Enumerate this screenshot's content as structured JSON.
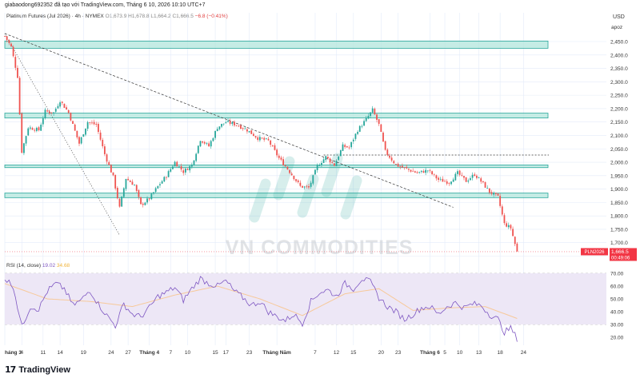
{
  "header": {
    "caption": "giabaodong692352 đã tạo với TradingView.com, Tháng 6 10, 2026 10:10 UTC+7"
  },
  "legend": {
    "symbol": "Platinum Futures (Jul 2026) · 4h · NYMEX",
    "open": "O1,673.9",
    "high": "H1,678.8",
    "low": "L1,664.2",
    "close": "C1,666.5",
    "change": "−6.8 (−0.41%)"
  },
  "rsi_legend": {
    "label": "RSI (14, close)",
    "rsi_value": "19.02",
    "ma_value": "34.68"
  },
  "currency": "USD",
  "scale_mode": "apoz",
  "price_tag": {
    "ticker": "PLN2026",
    "price": "1,666.5",
    "countdown": "00:49:06"
  },
  "watermark": "VN COMMODITIES",
  "brand": {
    "logo": "17",
    "name": "TradingView"
  },
  "colors": {
    "up": "#26a69a",
    "down": "#ef5350",
    "zone_fill": "#b2e5dc",
    "zone_stroke": "#26a69a",
    "rsi_line": "#7e57c2",
    "rsi_ma": "#f7c99a",
    "rsi_band": "#ede7f6",
    "grid": "#e3ebf9",
    "price_tag": "#f23645"
  },
  "chart_data": {
    "type": "candlestick",
    "price_axis": {
      "range": [
        1633,
        2510
      ],
      "ticks": [
        "2,450.0",
        "2,400.0",
        "2,350.0",
        "2,300.0",
        "2,250.0",
        "2,200.0",
        "2,150.0",
        "2,100.0",
        "2,050.0",
        "2,000.0",
        "1,950.0",
        "1,900.0",
        "1,850.0",
        "1,800.0",
        "1,750.0",
        "1,700.0",
        "1,650.0"
      ]
    },
    "rsi_axis": {
      "range": [
        12,
        76
      ],
      "ticks": [
        "70.00",
        "60.00",
        "50.00",
        "40.00",
        "30.00",
        "20.00"
      ],
      "band": [
        30,
        70
      ],
      "midline": 50
    },
    "time_axis": {
      "labels": [
        "háng 3",
        "4",
        "11",
        "14",
        "19",
        "24",
        "27",
        "Tháng 4",
        "7",
        "10",
        "15",
        "17",
        "23",
        "Tháng Năm",
        "7",
        "12",
        "15",
        "20",
        "23",
        "Tháng 6",
        "5",
        "10",
        "13",
        "18",
        "24"
      ],
      "month_starts": [
        "háng 3",
        "Tháng 4",
        "Tháng Năm",
        "Tháng 6"
      ],
      "bars_visible": 241,
      "bars_total": 283
    },
    "horizontal_zones": [
      {
        "from": 2425,
        "to": 2452
      },
      {
        "from": 2165,
        "to": 2183
      },
      {
        "from": 1980,
        "to": 1990
      },
      {
        "from": 1868,
        "to": 1885
      }
    ],
    "horizontal_lines": [
      {
        "price": 2027,
        "style": "dashed"
      }
    ],
    "trendlines": [
      {
        "from": {
          "bar": 0,
          "price": 2480
        },
        "to": {
          "bar": 211,
          "price": 1832
        },
        "style": "dashed"
      },
      {
        "from": {
          "bar": 0,
          "price": 2480
        },
        "to": {
          "bar": 54,
          "price": 1728
        },
        "style": "dotted"
      }
    ],
    "close_path": [
      {
        "bar": 0,
        "price": 2470
      },
      {
        "bar": 3,
        "price": 2430
      },
      {
        "bar": 6,
        "price": 2320
      },
      {
        "bar": 8,
        "price": 2040
      },
      {
        "bar": 11,
        "price": 2130
      },
      {
        "bar": 16,
        "price": 2120
      },
      {
        "bar": 19,
        "price": 2190
      },
      {
        "bar": 23,
        "price": 2185
      },
      {
        "bar": 26,
        "price": 2230
      },
      {
        "bar": 30,
        "price": 2185
      },
      {
        "bar": 35,
        "price": 2070
      },
      {
        "bar": 39,
        "price": 2150
      },
      {
        "bar": 43,
        "price": 2140
      },
      {
        "bar": 47,
        "price": 2030
      },
      {
        "bar": 51,
        "price": 1945
      },
      {
        "bar": 54,
        "price": 1830
      },
      {
        "bar": 57,
        "price": 1940
      },
      {
        "bar": 61,
        "price": 1915
      },
      {
        "bar": 64,
        "price": 1840
      },
      {
        "bar": 68,
        "price": 1865
      },
      {
        "bar": 72,
        "price": 1910
      },
      {
        "bar": 76,
        "price": 1950
      },
      {
        "bar": 80,
        "price": 2000
      },
      {
        "bar": 84,
        "price": 1965
      },
      {
        "bar": 88,
        "price": 1990
      },
      {
        "bar": 92,
        "price": 2085
      },
      {
        "bar": 96,
        "price": 2060
      },
      {
        "bar": 100,
        "price": 2130
      },
      {
        "bar": 104,
        "price": 2150
      },
      {
        "bar": 109,
        "price": 2140
      },
      {
        "bar": 114,
        "price": 2120
      },
      {
        "bar": 119,
        "price": 2090
      },
      {
        "bar": 124,
        "price": 2080
      },
      {
        "bar": 129,
        "price": 2015
      },
      {
        "bar": 134,
        "price": 1965
      },
      {
        "bar": 139,
        "price": 1910
      },
      {
        "bar": 143,
        "price": 1905
      },
      {
        "bar": 147,
        "price": 1985
      },
      {
        "bar": 151,
        "price": 2020
      },
      {
        "bar": 155,
        "price": 1990
      },
      {
        "bar": 159,
        "price": 2060
      },
      {
        "bar": 162,
        "price": 2055
      },
      {
        "bar": 166,
        "price": 2120
      },
      {
        "bar": 170,
        "price": 2160
      },
      {
        "bar": 173,
        "price": 2195
      },
      {
        "bar": 176,
        "price": 2140
      },
      {
        "bar": 179,
        "price": 2040
      },
      {
        "bar": 184,
        "price": 1990
      },
      {
        "bar": 189,
        "price": 1975
      },
      {
        "bar": 194,
        "price": 1960
      },
      {
        "bar": 199,
        "price": 1970
      },
      {
        "bar": 204,
        "price": 1935
      },
      {
        "bar": 209,
        "price": 1925
      },
      {
        "bar": 213,
        "price": 1960
      },
      {
        "bar": 217,
        "price": 1930
      },
      {
        "bar": 221,
        "price": 1955
      },
      {
        "bar": 225,
        "price": 1920
      },
      {
        "bar": 228,
        "price": 1890
      },
      {
        "bar": 232,
        "price": 1870
      },
      {
        "bar": 235,
        "price": 1770
      },
      {
        "bar": 238,
        "price": 1755
      },
      {
        "bar": 241,
        "price": 1666
      }
    ],
    "rsi_path": [
      {
        "bar": 0,
        "value": 66
      },
      {
        "bar": 4,
        "value": 60
      },
      {
        "bar": 8,
        "value": 28
      },
      {
        "bar": 12,
        "value": 44
      },
      {
        "bar": 16,
        "value": 42
      },
      {
        "bar": 20,
        "value": 56
      },
      {
        "bar": 24,
        "value": 62
      },
      {
        "bar": 28,
        "value": 58
      },
      {
        "bar": 32,
        "value": 45
      },
      {
        "bar": 36,
        "value": 49
      },
      {
        "bar": 40,
        "value": 57
      },
      {
        "bar": 44,
        "value": 46
      },
      {
        "bar": 48,
        "value": 37
      },
      {
        "bar": 52,
        "value": 29
      },
      {
        "bar": 56,
        "value": 46
      },
      {
        "bar": 60,
        "value": 38
      },
      {
        "bar": 64,
        "value": 36
      },
      {
        "bar": 68,
        "value": 43
      },
      {
        "bar": 72,
        "value": 52
      },
      {
        "bar": 76,
        "value": 55
      },
      {
        "bar": 80,
        "value": 59
      },
      {
        "bar": 84,
        "value": 49
      },
      {
        "bar": 88,
        "value": 58
      },
      {
        "bar": 92,
        "value": 66
      },
      {
        "bar": 96,
        "value": 62
      },
      {
        "bar": 100,
        "value": 60
      },
      {
        "bar": 104,
        "value": 64
      },
      {
        "bar": 108,
        "value": 56
      },
      {
        "bar": 112,
        "value": 51
      },
      {
        "bar": 116,
        "value": 45
      },
      {
        "bar": 120,
        "value": 48
      },
      {
        "bar": 124,
        "value": 40
      },
      {
        "bar": 128,
        "value": 36
      },
      {
        "bar": 132,
        "value": 33
      },
      {
        "bar": 136,
        "value": 38
      },
      {
        "bar": 140,
        "value": 31
      },
      {
        "bar": 144,
        "value": 48
      },
      {
        "bar": 148,
        "value": 55
      },
      {
        "bar": 152,
        "value": 57
      },
      {
        "bar": 156,
        "value": 52
      },
      {
        "bar": 160,
        "value": 62
      },
      {
        "bar": 164,
        "value": 58
      },
      {
        "bar": 168,
        "value": 66
      },
      {
        "bar": 172,
        "value": 63
      },
      {
        "bar": 176,
        "value": 51
      },
      {
        "bar": 180,
        "value": 44
      },
      {
        "bar": 184,
        "value": 40
      },
      {
        "bar": 188,
        "value": 34
      },
      {
        "bar": 192,
        "value": 38
      },
      {
        "bar": 196,
        "value": 43
      },
      {
        "bar": 200,
        "value": 44
      },
      {
        "bar": 204,
        "value": 38
      },
      {
        "bar": 208,
        "value": 44
      },
      {
        "bar": 212,
        "value": 47
      },
      {
        "bar": 216,
        "value": 43
      },
      {
        "bar": 220,
        "value": 46
      },
      {
        "bar": 224,
        "value": 45
      },
      {
        "bar": 228,
        "value": 38
      },
      {
        "bar": 232,
        "value": 34
      },
      {
        "bar": 235,
        "value": 24
      },
      {
        "bar": 238,
        "value": 27
      },
      {
        "bar": 241,
        "value": 19
      }
    ],
    "rsi_ma_path": [
      {
        "bar": 0,
        "value": 62
      },
      {
        "bar": 20,
        "value": 50
      },
      {
        "bar": 40,
        "value": 48
      },
      {
        "bar": 60,
        "value": 44
      },
      {
        "bar": 80,
        "value": 53
      },
      {
        "bar": 100,
        "value": 60
      },
      {
        "bar": 120,
        "value": 50
      },
      {
        "bar": 140,
        "value": 37
      },
      {
        "bar": 160,
        "value": 54
      },
      {
        "bar": 176,
        "value": 58
      },
      {
        "bar": 192,
        "value": 41
      },
      {
        "bar": 210,
        "value": 43
      },
      {
        "bar": 226,
        "value": 44
      },
      {
        "bar": 241,
        "value": 34.68
      }
    ]
  }
}
